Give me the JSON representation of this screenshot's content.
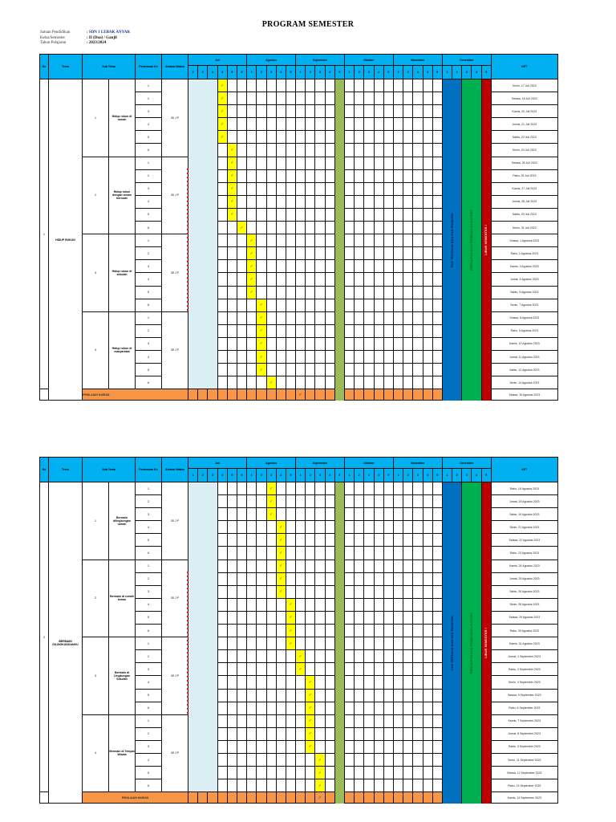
{
  "document": {
    "title": "PROGRAM SEMESTER",
    "info": [
      {
        "label": "Satuan Pendidikan",
        "value": ": SDN 1 LEBAK ANYAR",
        "highlight": true
      },
      {
        "label": "Kelas/Semester",
        "value": ": II (Dua) / Ganjil",
        "highlight": false
      },
      {
        "label": "Tahun Pelajaran",
        "value": ": 2023/2024",
        "highlight": false
      }
    ]
  },
  "columns": {
    "no": "No",
    "tema": "Tema",
    "sub_tema": "Sub Tema",
    "pertemuan": "Pertemuan Ke",
    "alokasi": "Alokasi Waktu",
    "ket": "KET"
  },
  "months": [
    {
      "name": "Juli",
      "weeks": [
        "1",
        "2",
        "3",
        "4",
        "5",
        "6"
      ]
    },
    {
      "name": "Agustus",
      "weeks": [
        "1",
        "2",
        "3",
        "4",
        "5"
      ]
    },
    {
      "name": "September",
      "weeks": [
        "1",
        "2",
        "3",
        "4",
        "5"
      ]
    },
    {
      "name": "Oktober",
      "weeks": [
        "1",
        "2",
        "3",
        "4",
        "5"
      ]
    },
    {
      "name": "November",
      "weeks": [
        "1",
        "2",
        "3",
        "4",
        "5"
      ]
    },
    {
      "name": "Desember",
      "weeks": [
        "1",
        "2",
        "3",
        "4",
        "5"
      ]
    }
  ],
  "special_columns": {
    "holiday_weeks": [
      0,
      1,
      2
    ],
    "midterm_week": 15,
    "pas_weeks": [
      26,
      27
    ],
    "raport_weeks": [
      28,
      29
    ],
    "libur_week": 30,
    "pas_label": "PAS TERTULIS DAN PAS PRAKTEK",
    "raport_label": "PERSIAPAN DAN PEMBAGIAN RAPORT",
    "libur_label": "LIBUR SEMESTER I"
  },
  "check_mark": "✓",
  "tables": [
    {
      "no": "1",
      "tema": "HIDUP RUKUN",
      "footer_label": "PENILAIAN HARIAN",
      "footer_check_week": 11,
      "footer_ket": "Selasa, 15 Agustus 2023",
      "subthemes": [
        {
          "no": "1",
          "name": "Hidup rukun di rumah",
          "alokasi": "30 J P",
          "meetings": [
            {
              "n": "1",
              "week": 3,
              "ket": "Senin, 17 Juli 2023"
            },
            {
              "n": "2",
              "week": 3,
              "ket": "Selasa, 18 Juli 2023"
            },
            {
              "n": "3",
              "week": 3,
              "ket": "Kamis, 20 Juli 2023"
            },
            {
              "n": "4",
              "week": 3,
              "ket": "Jumat, 21 Juli 2023"
            },
            {
              "n": "5",
              "week": 3,
              "ket": "Sabtu, 22 Juli 2023"
            },
            {
              "n": "6",
              "week": 4,
              "ket": "Senin, 24 Juli 2023"
            }
          ]
        },
        {
          "no": "2",
          "name": "Hidup rukun dengan teman bermain",
          "alokasi": "30 J P",
          "meetings": [
            {
              "n": "1",
              "week": 4,
              "ket": "Selasa, 25 Juli 2023"
            },
            {
              "n": "2",
              "week": 4,
              "ket": "Rabu, 26 Juli 2023"
            },
            {
              "n": "3",
              "week": 4,
              "ket": "Kamis, 27 Juli 2023"
            },
            {
              "n": "4",
              "week": 4,
              "ket": "Jumat, 28 Juli 2023"
            },
            {
              "n": "5",
              "week": 4,
              "ket": "Sabtu, 29 Juli 2023"
            },
            {
              "n": "6",
              "week": 5,
              "ket": "Senin, 31 Juli 2023"
            }
          ]
        },
        {
          "no": "3",
          "name": "Hidup rukun di sekolah",
          "alokasi": "30 J P",
          "meetings": [
            {
              "n": "1",
              "week": 6,
              "ket": "Selasa, 1 Agustus 2023"
            },
            {
              "n": "2",
              "week": 6,
              "ket": "Rabu, 2 Agustus 2023"
            },
            {
              "n": "3",
              "week": 6,
              "ket": "Kamis, 3 Agustus 2023"
            },
            {
              "n": "4",
              "week": 6,
              "ket": "Jumat, 4 Agustus 2023"
            },
            {
              "n": "5",
              "week": 6,
              "ket": "Sabtu, 5 Agustus 2023"
            },
            {
              "n": "6",
              "week": 7,
              "ket": "Senin, 7 Agustus 2023"
            }
          ]
        },
        {
          "no": "4",
          "name": "Hidup rukun di masyarakat",
          "alokasi": "30 J P",
          "meetings": [
            {
              "n": "1",
              "week": 7,
              "ket": "Selasa, 8 Agustus 2023"
            },
            {
              "n": "2",
              "week": 7,
              "ket": "Rabu, 9 Agustus 2023"
            },
            {
              "n": "3",
              "week": 7,
              "ket": "Kamis, 10 Agustus 2023"
            },
            {
              "n": "4",
              "week": 7,
              "ket": "Jumat, 11 Agustus 2023"
            },
            {
              "n": "5",
              "week": 7,
              "ket": "Sabtu, 12 Agustus 2023"
            },
            {
              "n": "6",
              "week": 8,
              "ket": "Senin, 14 Agustus 2023"
            }
          ]
        }
      ]
    },
    {
      "no": "2",
      "tema": "BERMAIN DILINGKUNGANKU",
      "footer_label": "PENILAIAN HARIAN",
      "footer_check_week": 13,
      "footer_ket": "Kamis, 14 September 2023",
      "subthemes": [
        {
          "no": "1",
          "name": "Bermain dilingkungan rumah",
          "alokasi": "30 J P",
          "meetings": [
            {
              "n": "1",
              "week": 8,
              "ket": "Rabu, 16 Agustus 2023"
            },
            {
              "n": "2",
              "week": 8,
              "ket": "Jumat, 18 Agustus 2023"
            },
            {
              "n": "3",
              "week": 8,
              "ket": "Sabtu, 19 Agustus 2023"
            },
            {
              "n": "4",
              "week": 9,
              "ket": "Senin, 21 Agustus 2023"
            },
            {
              "n": "5",
              "week": 9,
              "ket": "Selasa, 22 Agustus 2023"
            },
            {
              "n": "6",
              "week": 9,
              "ket": "Rabu, 23 Agustus 2023"
            }
          ]
        },
        {
          "no": "2",
          "name": "Bermain di rumah teman",
          "alokasi": "30 J P",
          "meetings": [
            {
              "n": "1",
              "week": 9,
              "ket": "Kamis, 24 Agustus 2023"
            },
            {
              "n": "2",
              "week": 9,
              "ket": "Jumat, 25 Agustus 2023"
            },
            {
              "n": "3",
              "week": 9,
              "ket": "Sabtu, 26 Agustus 2023"
            },
            {
              "n": "4",
              "week": 10,
              "ket": "Senin, 28 Agustus 2023"
            },
            {
              "n": "5",
              "week": 10,
              "ket": "Selasa, 29 Agustus 2023"
            },
            {
              "n": "6",
              "week": 10,
              "ket": "Rabu, 30 Agustus 2023"
            }
          ]
        },
        {
          "no": "3",
          "name": "Bermain di Lingkungan Sekolah",
          "alokasi": "30 J P",
          "meetings": [
            {
              "n": "1",
              "week": 10,
              "ket": "Kamis, 31 Agustus 2023"
            },
            {
              "n": "2",
              "week": 11,
              "ket": "Jumat, 1 September 2023"
            },
            {
              "n": "3",
              "week": 11,
              "ket": "Sabtu, 2 September 2023"
            },
            {
              "n": "4",
              "week": 12,
              "ket": "Senin, 4 September 2023"
            },
            {
              "n": "5",
              "week": 12,
              "ket": "Selasa, 5 September 2023"
            },
            {
              "n": "6",
              "week": 12,
              "ket": "Rabu, 6 September 2023"
            }
          ]
        },
        {
          "no": "4",
          "name": "Bermain di Tempat Wisata",
          "alokasi": "30 J P",
          "meetings": [
            {
              "n": "1",
              "week": 12,
              "ket": "Kamis, 7 September 2023"
            },
            {
              "n": "2",
              "week": 12,
              "ket": "Jumat, 8 September 2023"
            },
            {
              "n": "3",
              "week": 12,
              "ket": "Sabtu, 9 September 2023"
            },
            {
              "n": "4",
              "week": 13,
              "ket": "Senin, 11 September 2023"
            },
            {
              "n": "5",
              "week": 13,
              "ket": "Selasa, 12 September 2023"
            },
            {
              "n": "6",
              "week": 13,
              "ket": "Rabu, 13 September 2023"
            }
          ]
        }
      ]
    }
  ]
}
